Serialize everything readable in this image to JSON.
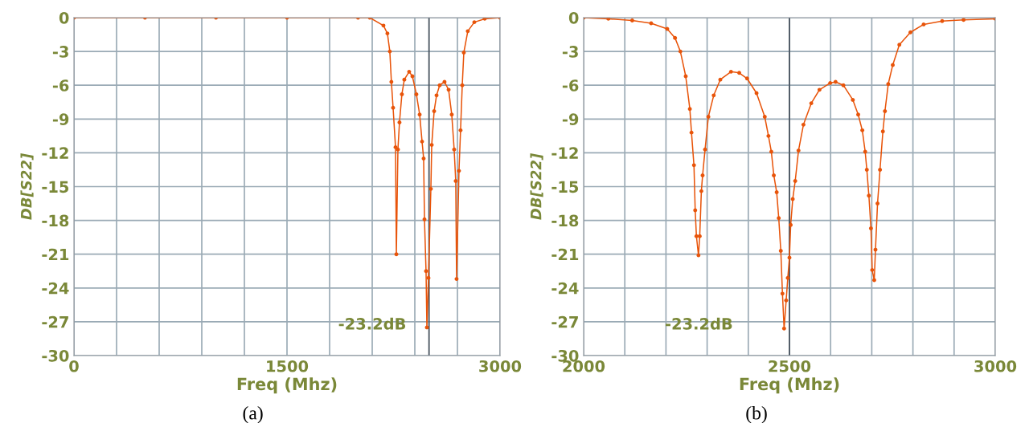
{
  "chart_data": [
    {
      "type": "line",
      "xlabel": "Freq (Mhz)",
      "ylabel": "DB[S22]",
      "annotations": [
        "-23.2dB",
        "(a)"
      ],
      "xlim": [
        0,
        3000
      ],
      "ylim": [
        -30,
        0
      ],
      "xticks": [
        0,
        {
          "value": 300,
          "label": null
        },
        {
          "value": 600,
          "label": null
        },
        {
          "value": 900,
          "label": null
        },
        {
          "value": 1200,
          "label": null
        },
        1500,
        {
          "value": 1800,
          "label": null
        },
        {
          "value": 2100,
          "label": null
        },
        {
          "value": 2400,
          "label": null
        },
        {
          "value": 2700,
          "label": null
        },
        3000
      ],
      "yticks": [
        0,
        -3,
        -6,
        -9,
        -12,
        -15,
        -18,
        -21,
        -24,
        -27,
        -30
      ],
      "grid": true,
      "marker": "circle",
      "line_style": "solid",
      "ref_lines": [
        {
          "axis": "x",
          "value": 2500,
          "color": "#4a5560"
        }
      ],
      "series": [
        {
          "color": "#e8540a",
          "x": [
            0,
            500,
            1000,
            1500,
            2000,
            2083,
            2179,
            2207,
            2224,
            2235,
            2247,
            2264,
            2270,
            2281,
            2292,
            2309,
            2326,
            2360,
            2383,
            2411,
            2434,
            2451,
            2462,
            2468,
            2479,
            2485,
            2496,
            2513,
            2519,
            2536,
            2553,
            2575,
            2609,
            2638,
            2660,
            2677,
            2688,
            2694,
            2711,
            2722,
            2734,
            2745,
            2773,
            2819,
            2892,
            3000
          ],
          "values": [
            0,
            0,
            0,
            0,
            0,
            0,
            -0.7,
            -1.4,
            -3,
            -5.7,
            -8,
            -11.5,
            -21,
            -11.7,
            -9.3,
            -6.8,
            -5.5,
            -4.8,
            -5.2,
            -6.8,
            -8.6,
            -11,
            -12.5,
            -17.9,
            -22.5,
            -27.5,
            -23.1,
            -15.2,
            -11.3,
            -8.3,
            -6.9,
            -6,
            -5.7,
            -6.4,
            -8.6,
            -11.7,
            -14.5,
            -23.2,
            -13.6,
            -10,
            -6,
            -3.1,
            -1.2,
            -0.4,
            -0.1,
            0
          ]
        }
      ]
    },
    {
      "type": "line",
      "xlabel": "Freq (Mhz)",
      "ylabel": "DB[S22]",
      "annotations": [
        "-23.2dB",
        "(b)"
      ],
      "xlim": [
        2000,
        3000
      ],
      "ylim": [
        -30,
        0
      ],
      "xticks": [
        2000,
        {
          "value": 2100,
          "label": null
        },
        {
          "value": 2200,
          "label": null
        },
        {
          "value": 2300,
          "label": null
        },
        {
          "value": 2400,
          "label": null
        },
        2500,
        {
          "value": 2600,
          "label": null
        },
        {
          "value": 2700,
          "label": null
        },
        {
          "value": 2800,
          "label": null
        },
        {
          "value": 2900,
          "label": null
        },
        3000
      ],
      "yticks": [
        0,
        -3,
        -6,
        -9,
        -12,
        -15,
        -18,
        -21,
        -24,
        -27,
        -30
      ],
      "grid": true,
      "marker": "circle",
      "line_style": "solid",
      "ref_lines": [
        {
          "axis": "x",
          "value": 2500,
          "color": "#4a5560"
        }
      ],
      "series": [
        {
          "color": "#e8540a",
          "x": [
            2000,
            2060,
            2118,
            2164,
            2203,
            2222,
            2235,
            2248,
            2258,
            2262,
            2268,
            2271,
            2274,
            2279,
            2282,
            2286,
            2289,
            2295,
            2303,
            2316,
            2332,
            2358,
            2378,
            2397,
            2420,
            2440,
            2449,
            2456,
            2462,
            2469,
            2474,
            2479,
            2483,
            2487,
            2492,
            2496,
            2500,
            2503,
            2508,
            2514,
            2522,
            2534,
            2553,
            2573,
            2599,
            2612,
            2631,
            2654,
            2667,
            2677,
            2684,
            2688,
            2693,
            2698,
            2701,
            2706,
            2709,
            2714,
            2720,
            2727,
            2732,
            2740,
            2751,
            2767,
            2794,
            2826,
            2871,
            2923,
            3000
          ],
          "values": [
            0,
            -0.1,
            -0.25,
            -0.5,
            -1.0,
            -1.8,
            -3.0,
            -5.2,
            -8.1,
            -10.2,
            -13.1,
            -17.1,
            -19.4,
            -21.1,
            -19.4,
            -15.4,
            -14,
            -11.7,
            -8.8,
            -6.9,
            -5.5,
            -4.8,
            -4.9,
            -5.4,
            -6.7,
            -8.8,
            -10.5,
            -11.9,
            -14,
            -15.5,
            -17.8,
            -20.7,
            -24.5,
            -27.6,
            -25.1,
            -23.1,
            -21.3,
            -18.4,
            -16.1,
            -14.5,
            -11.8,
            -9.5,
            -7.6,
            -6.4,
            -5.8,
            -5.7,
            -6.0,
            -7.3,
            -8.6,
            -10,
            -11.9,
            -13.5,
            -15.8,
            -18.7,
            -22.4,
            -23.3,
            -20.6,
            -16.5,
            -13.5,
            -10.1,
            -8.3,
            -5.9,
            -4.2,
            -2.4,
            -1.3,
            -0.6,
            -0.3,
            -0.2,
            -0.1
          ]
        }
      ]
    }
  ]
}
